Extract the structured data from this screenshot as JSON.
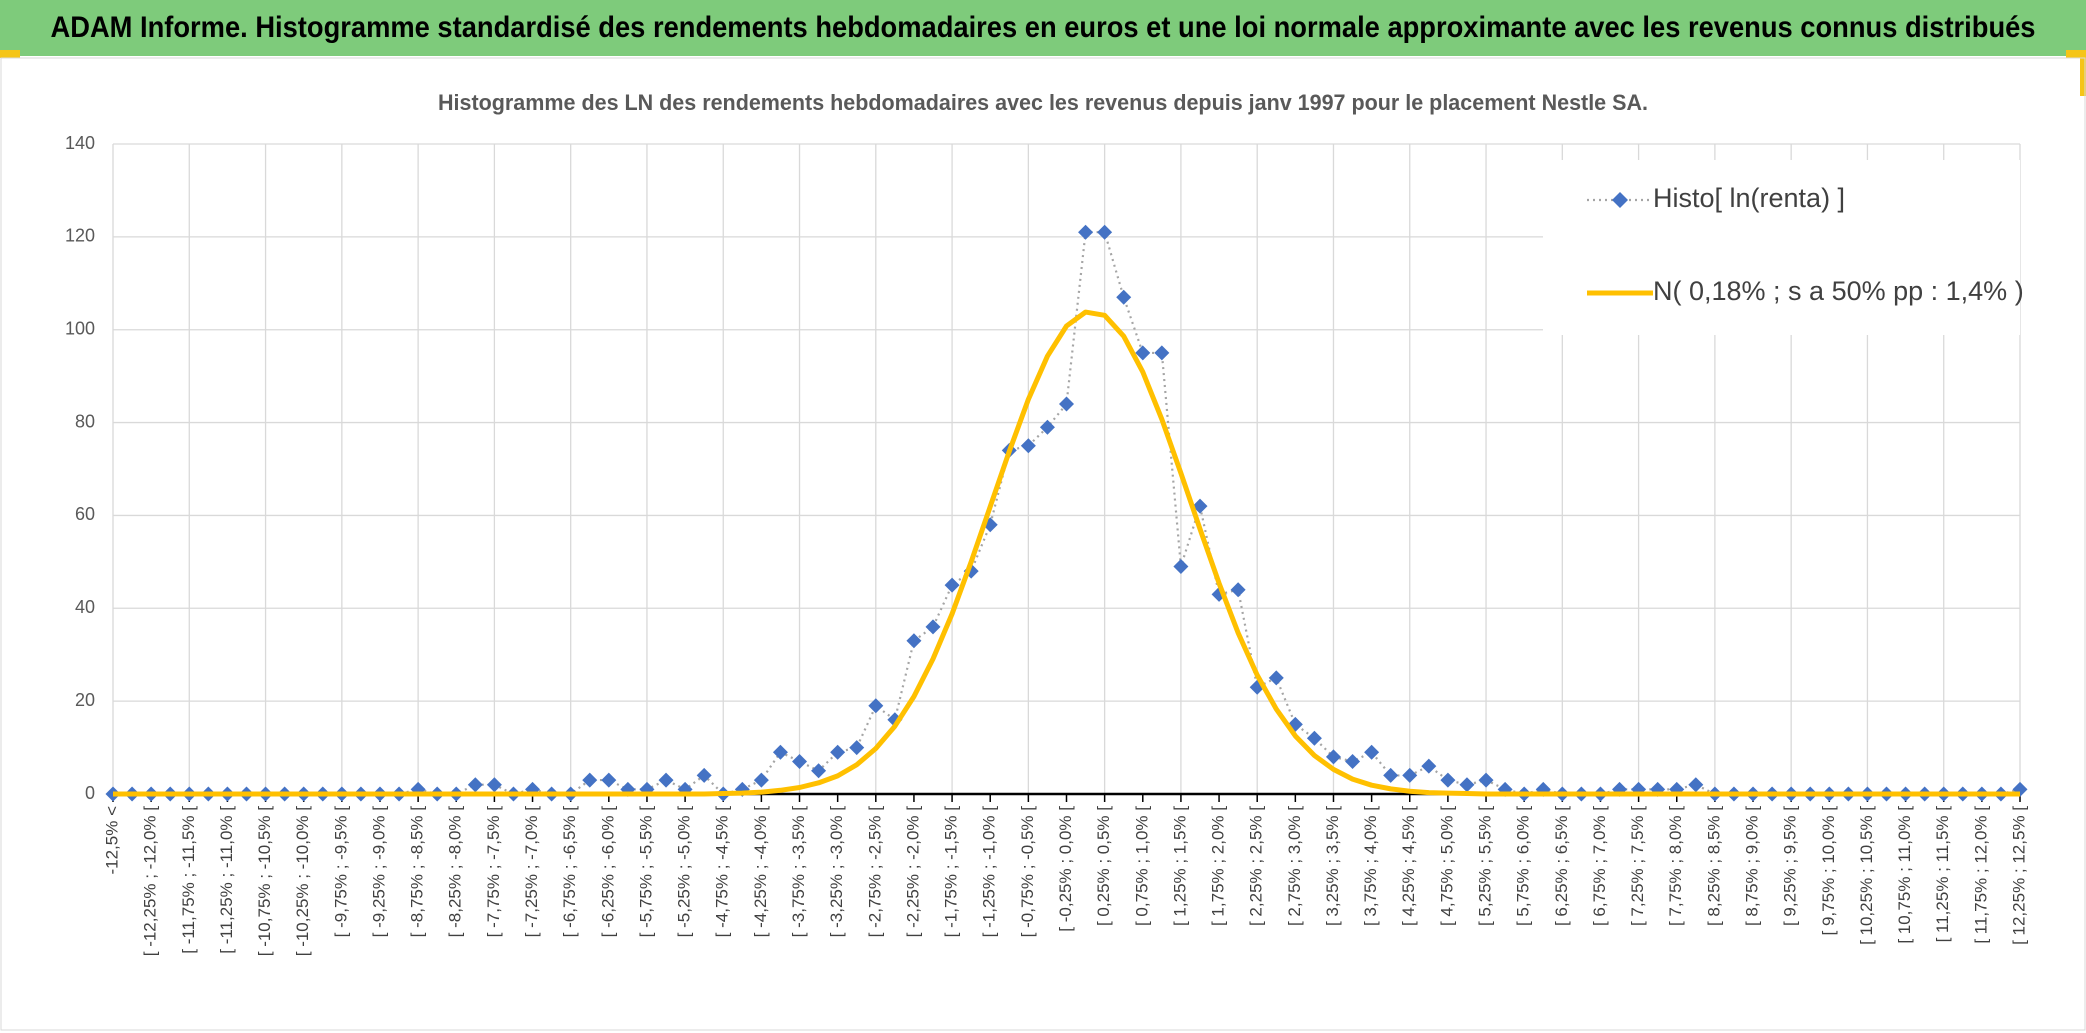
{
  "chart_data": {
    "type": "line",
    "title": "ADAM Informe. Histogramme standardisé des rendements hebdomadaires en euros et une loi normale approximante avec les revenus connus distribués",
    "subtitle": "Histogramme des LN des rendements hebdomadaires avec les revenus depuis janv 1997 pour le placement Nestle SA.",
    "categories": [
      "-12,5% <",
      null,
      "[ -12,25% ; -12,0% [",
      null,
      "[ -11,75% ; -11,5% [",
      null,
      "[ -11,25% ; -11,0% [",
      null,
      "[ -10,75% ; -10,5% [",
      null,
      "[ -10,25% ; -10,0% [",
      null,
      "[ -9,75% ; -9,5% [",
      null,
      "[ -9,25% ; -9,0% [",
      null,
      "[ -8,75% ; -8,5% [",
      null,
      "[ -8,25% ; -8,0% [",
      null,
      "[ -7,75% ; -7,5% [",
      null,
      "[ -7,25% ; -7,0% [",
      null,
      "[ -6,75% ; -6,5% [",
      null,
      "[ -6,25% ; -6,0% [",
      null,
      "[ -5,75% ; -5,5% [",
      null,
      "[ -5,25% ; -5,0% [",
      null,
      "[ -4,75% ; -4,5% [",
      null,
      "[ -4,25% ; -4,0% [",
      null,
      "[ -3,75% ; -3,5% [",
      null,
      "[ -3,25% ; -3,0% [",
      null,
      "[ -2,75% ; -2,5% [",
      null,
      "[ -2,25% ; -2,0% [",
      null,
      "[ -1,75% ; -1,5% [",
      null,
      "[ -1,25% ; -1,0% [",
      null,
      "[ -0,75% ; -0,5% [",
      null,
      "[ -0,25% ; 0,0% [",
      null,
      "[ 0,25% ; 0,5% [",
      null,
      "[ 0,75% ; 1,0% [",
      null,
      "[ 1,25% ; 1,5% [",
      null,
      "[ 1,75% ; 2,0% [",
      null,
      "[ 2,25% ; 2,5% [",
      null,
      "[ 2,75% ; 3,0% [",
      null,
      "[ 3,25% ; 3,5% [",
      null,
      "[ 3,75% ; 4,0% [",
      null,
      "[ 4,25% ; 4,5% [",
      null,
      "[ 4,75% ; 5,0% [",
      null,
      "[ 5,25% ; 5,5% [",
      null,
      "[ 5,75% ; 6,0% [",
      null,
      "[ 6,25% ; 6,5% [",
      null,
      "[ 6,75% ; 7,0% [",
      null,
      "[ 7,25% ; 7,5% [",
      null,
      "[ 7,75% ; 8,0% [",
      null,
      "[ 8,25% ; 8,5% [",
      null,
      "[ 8,75% ; 9,0% [",
      null,
      "[ 9,25% ; 9,5% [",
      null,
      "[ 9,75% ; 10,0% [",
      null,
      "[ 10,25% ; 10,5% [",
      null,
      "[ 10,75% ; 11,0% [",
      null,
      "[ 11,25% ; 11,5% [",
      null,
      "[ 11,75% ; 12,0% [",
      null,
      "[ 12,25% ; 12,5% ["
    ],
    "series": [
      {
        "name": "Histo[ ln(renta) ]",
        "color": "#4472c4",
        "line_color": "#a5a5a5",
        "marker": "diamond",
        "values": [
          0,
          0,
          0,
          0,
          0,
          0,
          0,
          0,
          0,
          0,
          0,
          0,
          0,
          0,
          0,
          0,
          1,
          0,
          0,
          2,
          2,
          0,
          1,
          0,
          0,
          3,
          3,
          1,
          1,
          3,
          1,
          4,
          0,
          1,
          3,
          9,
          7,
          5,
          9,
          10,
          19,
          16,
          33,
          36,
          45,
          48,
          58,
          74,
          75,
          79,
          84,
          121,
          121,
          107,
          95,
          95,
          49,
          62,
          43,
          44,
          23,
          25,
          15,
          12,
          8,
          7,
          9,
          4,
          4,
          6,
          3,
          2,
          3,
          1,
          0,
          1,
          0,
          0,
          0,
          1,
          1,
          1,
          1,
          2,
          0,
          0,
          0,
          0,
          0,
          0,
          0,
          0,
          0,
          0,
          0,
          0,
          0,
          0,
          0,
          0,
          1
        ]
      },
      {
        "name": "N( 0,18% ; s a 50% pp : 1,4% )",
        "color": "#ffc000",
        "values": [
          0,
          0,
          0,
          0,
          0,
          0,
          0,
          0,
          0,
          0,
          0,
          0,
          0,
          0,
          0,
          0,
          0,
          0,
          0,
          0,
          0,
          0,
          0,
          0,
          0,
          0,
          0,
          0,
          0,
          0,
          0,
          0,
          0.1,
          0.2,
          0.4,
          0.8,
          1.4,
          2.4,
          3.9,
          6.3,
          9.8,
          14.6,
          21.0,
          29.1,
          38.8,
          50.0,
          61.9,
          73.8,
          85.0,
          94.3,
          100.8,
          103.8,
          103.1,
          98.6,
          90.9,
          80.7,
          69.1,
          57.1,
          45.4,
          34.7,
          25.6,
          18.3,
          12.5,
          8.3,
          5.3,
          3.2,
          1.9,
          1.1,
          0.6,
          0.3,
          0.2,
          0.1,
          0,
          0,
          0,
          0,
          0,
          0,
          0,
          0,
          0,
          0,
          0,
          0,
          0,
          0,
          0,
          0,
          0,
          0,
          0,
          0,
          0,
          0,
          0,
          0,
          0,
          0,
          0,
          0,
          0
        ]
      }
    ],
    "ylim": [
      0,
      140
    ],
    "yticks": [
      0,
      20,
      40,
      60,
      80,
      100,
      120,
      140
    ],
    "grid": true,
    "legend": "top-right"
  }
}
